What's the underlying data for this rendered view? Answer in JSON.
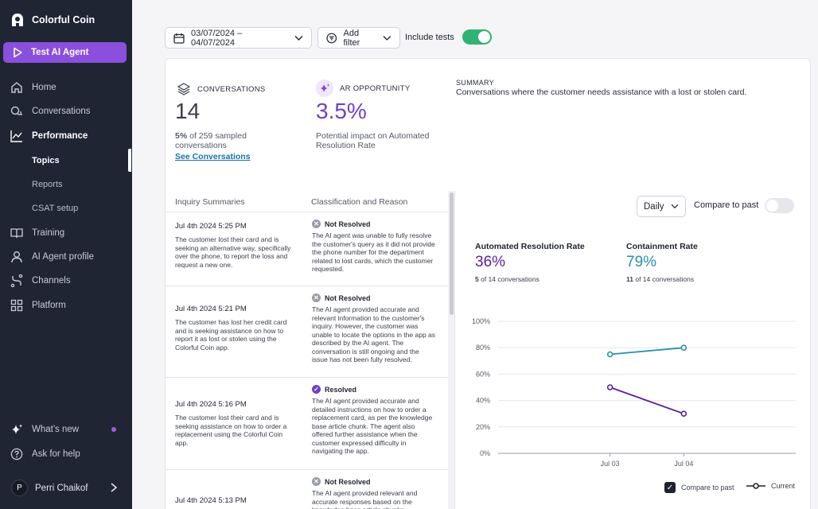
{
  "sidebar": {
    "brand": "Colorful Coin",
    "agent_button": "Test AI Agent",
    "items": {
      "home": "Home",
      "conversations": "Conversations",
      "performance": "Performance",
      "topics": "Topics",
      "reports": "Reports",
      "csat": "CSAT setup",
      "training": "Training",
      "agent_profile": "AI Agent profile",
      "channels": "Channels",
      "platform": "Platform",
      "whats_new": "What's new",
      "help": "Ask for help"
    },
    "user": {
      "initial": "P",
      "name": "Perri Chaikof"
    }
  },
  "toolbar": {
    "date_range": "03/07/2024 – 04/07/2024",
    "add_filter": "Add filter",
    "include_tests": "Include tests"
  },
  "stats": {
    "conversations": {
      "label": "CONVERSATIONS",
      "value": "14",
      "pct": "5%",
      "note_line1": " of 259 sampled",
      "note_line2": "conversations",
      "link": "See Conversations"
    },
    "ar_opportunity": {
      "label": "AR OPPORTUNITY",
      "value": "3.5%",
      "note_line1": "Potential impact on Automated",
      "note_line2": "Resolution Rate"
    },
    "summary": {
      "label": "SUMMARY",
      "text": "Conversations where the customer needs assistance with a lost or stolen card."
    }
  },
  "table": {
    "col1": "Inquiry Summaries",
    "col2": "Classification and Reason",
    "rows": [
      {
        "date": "Jul 4th 2024 5:25 PM",
        "summary": "The customer lost their card and is seeking an alternative way, specifically over the phone, to report the loss and request a new one.",
        "status": "Not Resolved",
        "reason": "The AI agent was unable to fully resolve the customer's query as it did not provide the phone number for the department related to lost cards, which the customer requested."
      },
      {
        "date": "Jul 4th 2024 5:21 PM",
        "summary": "The customer has lost her credit card and is seeking assistance on how to report it as lost or stolen using the Colorful Coin app.",
        "status": "Not Resolved",
        "reason": "The AI agent provided accurate and relevant information to the customer's inquiry. However, the customer was unable to locate the options in the app as described by the AI agent. The conversation is still ongoing and the issue has not been fully resolved."
      },
      {
        "date": "Jul 4th 2024 5:16 PM",
        "summary": "The customer lost their card and is seeking assistance on how to order a replacement using the Colorful Coin app.",
        "status": "Resolved",
        "reason": "The AI agent provided accurate and detailed instructions on how to order a replacement card, as per the knowledge base article chunk. The agent also offered further assistance when the customer expressed difficulty in navigating the app."
      },
      {
        "date": "Jul 4th 2024 5:13 PM",
        "summary": "",
        "status": "Not Resolved",
        "reason": "The AI agent provided relevant and accurate responses based on the knowledge base article chunks"
      }
    ]
  },
  "chart_panel": {
    "granularity": "Daily",
    "compare_label": "Compare to past",
    "arr": {
      "title": "Automated Resolution Rate",
      "value": "36%",
      "count": "5",
      "sub": " of 14 conversations"
    },
    "containment": {
      "title": "Containment Rate",
      "value": "79%",
      "count": "11",
      "sub": " of 14 conversations"
    },
    "legend_compare": "Compare to past",
    "legend_current": "Current"
  },
  "colors": {
    "accent": "#8a4fdc",
    "teal": "#2a8fb0",
    "purple": "#5a1d9e",
    "toggle_on": "#2fb373"
  },
  "chart_data": {
    "type": "line",
    "x": [
      "Jul 03",
      "Jul 04"
    ],
    "y_ticks": [
      "0%",
      "20%",
      "40%",
      "60%",
      "80%",
      "100%"
    ],
    "ylim": [
      0,
      100
    ],
    "series": [
      {
        "name": "Containment Rate",
        "color": "#2a8fb0",
        "values": [
          75,
          80
        ]
      },
      {
        "name": "Automated Resolution Rate",
        "color": "#5a1d9e",
        "values": [
          50,
          30
        ]
      }
    ]
  }
}
